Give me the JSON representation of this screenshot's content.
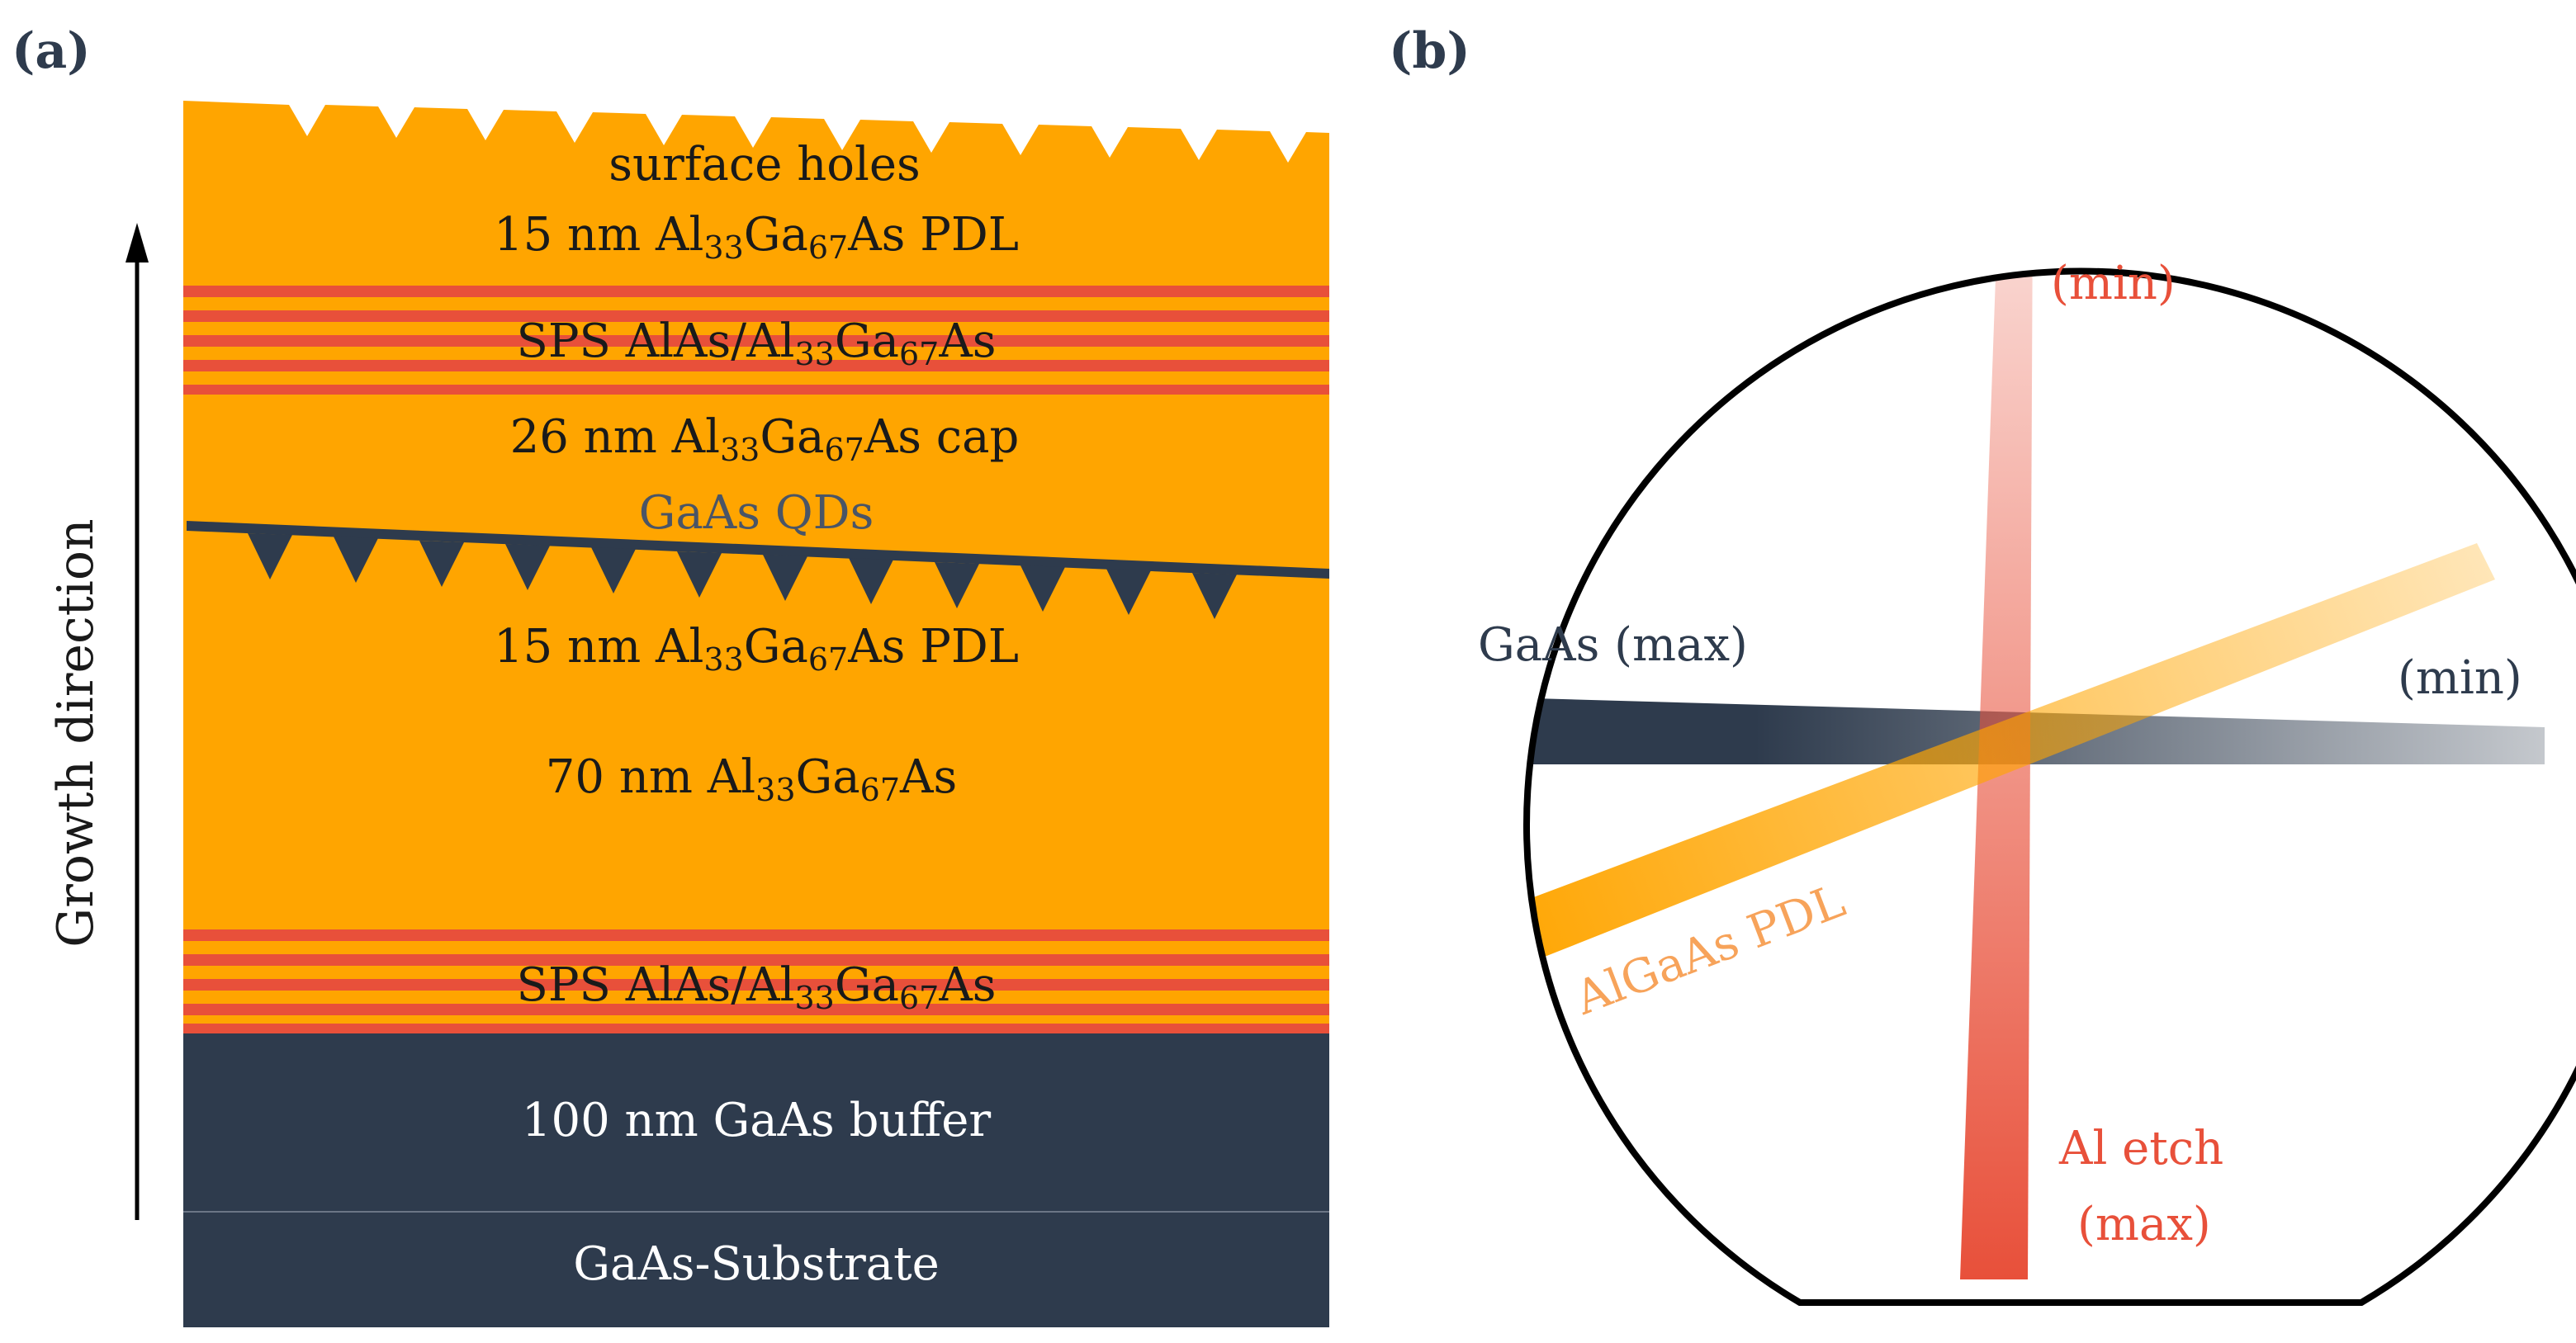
{
  "panels": {
    "a": {
      "label": "(a)"
    },
    "b": {
      "label": "(b)"
    }
  },
  "layers": {
    "surface_holes": "surface holes",
    "pdl_top": {
      "prefix": "15 nm Al",
      "sub1": "33",
      "mid": "Ga",
      "sub2": "67",
      "suffix": "As PDL"
    },
    "sps_top": {
      "prefix": "SPS AlAs/Al",
      "sub1": "33",
      "mid": "Ga",
      "sub2": "67",
      "suffix": "As"
    },
    "cap": {
      "prefix": "26 nm Al",
      "sub1": "33",
      "mid": "Ga",
      "sub2": "67",
      "suffix": "As cap"
    },
    "qds": "GaAs QDs",
    "pdl_bottom": {
      "prefix": "15 nm Al",
      "sub1": "33",
      "mid": "Ga",
      "sub2": "67",
      "suffix": "As PDL"
    },
    "algaas_70": {
      "prefix": "70 nm Al",
      "sub1": "33",
      "mid": "Ga",
      "sub2": "67",
      "suffix": "As"
    },
    "sps_bottom": {
      "prefix": "SPS AlAs/Al",
      "sub1": "33",
      "mid": "Ga",
      "sub2": "67",
      "suffix": "As"
    },
    "buffer": "100 nm GaAs buffer",
    "substrate": "GaAs-Substrate"
  },
  "growth_direction": "Growth direction",
  "wafer": {
    "gaas_max": "GaAs (max)",
    "gaas_min": "(min)",
    "al_etch_min": "(min)",
    "al_etch_max_line1": "Al etch",
    "al_etch_max_line2": "(max)",
    "algaas_pdl": "AlGaAs PDL"
  },
  "colors": {
    "orange": "#ffa500",
    "red_stripe": "#e8503a",
    "dark": "#2e3b4d",
    "label_red": "#e8503a",
    "label_orange": "#f7a35a"
  }
}
